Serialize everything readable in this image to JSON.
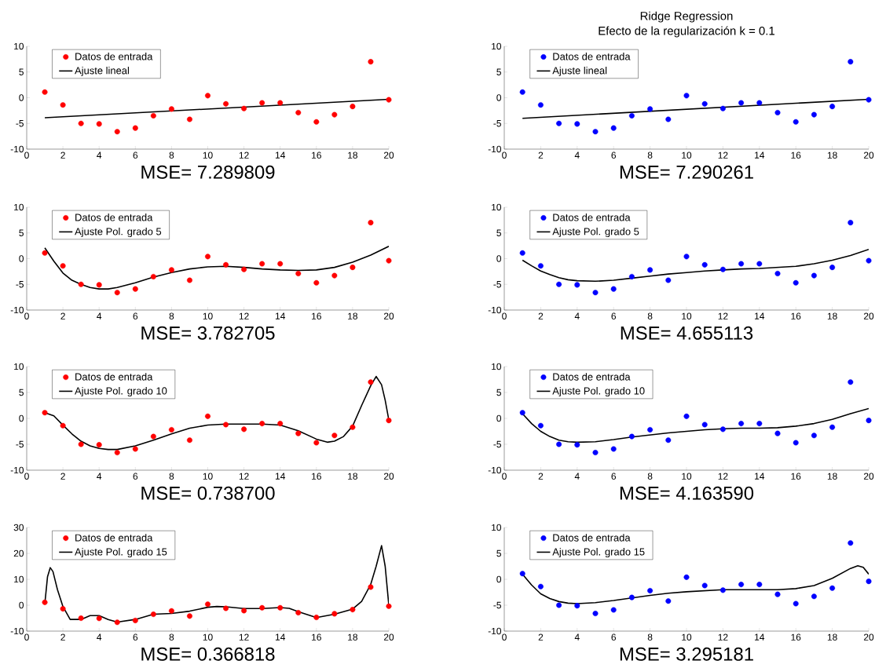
{
  "chart_data": [
    {
      "type": "scatter",
      "xlabel": "MSE= 7.289809",
      "xlim": [
        0,
        20
      ],
      "ylim": [
        -10,
        10
      ],
      "xticks": [
        0,
        2,
        4,
        6,
        8,
        10,
        12,
        14,
        16,
        18,
        20
      ],
      "yticks": [
        -10,
        -5,
        0,
        5,
        10
      ],
      "legend": "top left",
      "series": [
        {
          "name": "Datos de entrada",
          "marker": "circle",
          "color": "#ff0000",
          "x": [
            1,
            2,
            3,
            4,
            5,
            6,
            7,
            8,
            9,
            10,
            11,
            12,
            13,
            14,
            15,
            16,
            17,
            18,
            19,
            20
          ],
          "values": [
            1.1,
            -1.4,
            -5.0,
            -5.1,
            -6.6,
            -5.9,
            -3.5,
            -2.2,
            -4.2,
            0.4,
            -1.2,
            -2.1,
            -1.0,
            -1.0,
            -2.9,
            -4.7,
            -3.3,
            -1.7,
            7.0,
            -0.4
          ]
        },
        {
          "name": "Ajuste lineal",
          "type": "line",
          "marker": "none",
          "color": "#000000",
          "x": [
            1,
            20
          ],
          "values": [
            -3.9,
            -0.3
          ]
        }
      ]
    },
    {
      "type": "scatter",
      "title": "Ridge Regression",
      "subtitle": "Efecto de la regularización k = 0.1",
      "xlabel": "MSE= 7.290261",
      "xlim": [
        0,
        20
      ],
      "ylim": [
        -10,
        10
      ],
      "xticks": [
        0,
        2,
        4,
        6,
        8,
        10,
        12,
        14,
        16,
        18,
        20
      ],
      "yticks": [
        -10,
        -5,
        0,
        5,
        10
      ],
      "legend": "top left",
      "series": [
        {
          "name": "Datos de entrada",
          "type": "scatter",
          "marker": "circle",
          "color": "#0000ff",
          "x": [
            1,
            2,
            3,
            4,
            5,
            6,
            7,
            8,
            9,
            10,
            11,
            12,
            13,
            14,
            15,
            16,
            17,
            18,
            19,
            20
          ],
          "values": [
            1.1,
            -1.4,
            -5.0,
            -5.1,
            -6.6,
            -5.9,
            -3.5,
            -2.2,
            -4.2,
            0.4,
            -1.2,
            -2.1,
            -1.0,
            -1.0,
            -2.9,
            -4.7,
            -3.3,
            -1.7,
            7.0,
            -0.4
          ]
        },
        {
          "name": "Ajuste lineal",
          "type": "line",
          "marker": "none",
          "color": "#000000",
          "x": [
            1,
            20
          ],
          "values": [
            -4.0,
            -0.3
          ]
        }
      ]
    },
    {
      "type": "scatter",
      "xlabel": "MSE= 3.782705",
      "xlim": [
        0,
        20
      ],
      "ylim": [
        -10,
        10
      ],
      "xticks": [
        0,
        2,
        4,
        6,
        8,
        10,
        12,
        14,
        16,
        18,
        20
      ],
      "yticks": [
        -10,
        -5,
        0,
        5,
        10
      ],
      "legend": "top left",
      "series": [
        {
          "name": "Datos de entrada",
          "type": "scatter",
          "marker": "circle",
          "color": "#ff0000",
          "x": [
            1,
            2,
            3,
            4,
            5,
            6,
            7,
            8,
            9,
            10,
            11,
            12,
            13,
            14,
            15,
            16,
            17,
            18,
            19,
            20
          ],
          "values": [
            1.1,
            -1.4,
            -5.0,
            -5.1,
            -6.6,
            -5.9,
            -3.5,
            -2.2,
            -4.2,
            0.4,
            -1.2,
            -2.1,
            -1.0,
            -1.0,
            -2.9,
            -4.7,
            -3.3,
            -1.7,
            7.0,
            -0.4
          ]
        },
        {
          "name": "Ajuste Pol. grado 5",
          "type": "line",
          "marker": "none",
          "color": "#000000",
          "x": [
            1,
            1.5,
            2,
            2.5,
            3,
            3.5,
            4,
            4.5,
            5,
            6,
            7,
            8,
            9,
            10,
            11,
            12,
            13,
            14,
            15,
            16,
            17,
            18,
            19,
            20
          ],
          "values": [
            2.1,
            -0.5,
            -2.8,
            -4.2,
            -5.0,
            -5.6,
            -5.9,
            -5.9,
            -5.6,
            -4.7,
            -3.6,
            -2.7,
            -2.0,
            -1.6,
            -1.5,
            -1.7,
            -2.0,
            -2.2,
            -2.3,
            -2.2,
            -1.7,
            -0.7,
            0.7,
            2.4
          ]
        }
      ]
    },
    {
      "type": "scatter",
      "xlabel": "MSE= 4.655113",
      "xlim": [
        0,
        20
      ],
      "ylim": [
        -10,
        10
      ],
      "xticks": [
        0,
        2,
        4,
        6,
        8,
        10,
        12,
        14,
        16,
        18,
        20
      ],
      "yticks": [
        -10,
        -5,
        0,
        5,
        10
      ],
      "legend": "top left",
      "series": [
        {
          "name": "Datos de entrada",
          "type": "scatter",
          "marker": "circle",
          "color": "#0000ff",
          "x": [
            1,
            2,
            3,
            4,
            5,
            6,
            7,
            8,
            9,
            10,
            11,
            12,
            13,
            14,
            15,
            16,
            17,
            18,
            19,
            20
          ],
          "values": [
            1.1,
            -1.4,
            -5.0,
            -5.1,
            -6.6,
            -5.9,
            -3.5,
            -2.2,
            -4.2,
            0.4,
            -1.2,
            -2.1,
            -1.0,
            -1.0,
            -2.9,
            -4.7,
            -3.3,
            -1.7,
            7.0,
            -0.4
          ]
        },
        {
          "name": "Ajuste Pol. grado 5",
          "type": "line",
          "marker": "none",
          "color": "#000000",
          "x": [
            1,
            1.5,
            2,
            2.5,
            3,
            3.5,
            4,
            5,
            6,
            7,
            8,
            9,
            10,
            11,
            12,
            13,
            14,
            15,
            16,
            17,
            18,
            19,
            20
          ],
          "values": [
            -0.3,
            -1.4,
            -2.4,
            -3.1,
            -3.7,
            -4.1,
            -4.3,
            -4.4,
            -4.2,
            -3.8,
            -3.4,
            -3.0,
            -2.7,
            -2.4,
            -2.2,
            -2.0,
            -1.9,
            -1.7,
            -1.5,
            -1.0,
            -0.3,
            0.6,
            1.8
          ]
        }
      ]
    },
    {
      "type": "scatter",
      "xlabel": "MSE= 0.738700",
      "xlim": [
        0,
        20
      ],
      "ylim": [
        -10,
        10
      ],
      "xticks": [
        0,
        2,
        4,
        6,
        8,
        10,
        12,
        14,
        16,
        18,
        20
      ],
      "yticks": [
        -10,
        -5,
        0,
        5,
        10
      ],
      "legend": "top left",
      "series": [
        {
          "name": "Datos de entrada",
          "type": "scatter",
          "marker": "circle",
          "color": "#ff0000",
          "x": [
            1,
            2,
            3,
            4,
            5,
            6,
            7,
            8,
            9,
            10,
            11,
            12,
            13,
            14,
            15,
            16,
            17,
            18,
            19,
            20
          ],
          "values": [
            1.1,
            -1.4,
            -5.0,
            -5.1,
            -6.6,
            -5.9,
            -3.5,
            -2.2,
            -4.2,
            0.4,
            -1.2,
            -2.1,
            -1.0,
            -1.0,
            -2.9,
            -4.7,
            -3.3,
            -1.7,
            7.0,
            -0.4
          ]
        },
        {
          "name": "Ajuste Pol. grado 10",
          "type": "line",
          "marker": "none",
          "color": "#000000",
          "x": [
            1,
            1.5,
            2,
            2.5,
            3,
            3.5,
            4,
            4.5,
            5,
            6,
            7,
            8,
            9,
            10,
            11,
            12,
            13,
            14,
            15,
            15.5,
            16,
            16.6,
            17,
            17.5,
            18,
            18.5,
            19,
            19.3,
            19.6,
            19.8,
            20
          ],
          "values": [
            1.1,
            0.5,
            -1.3,
            -3.0,
            -4.4,
            -5.3,
            -5.8,
            -6.0,
            -6.0,
            -5.3,
            -4.2,
            -3.0,
            -1.9,
            -1.3,
            -1.1,
            -1.1,
            -1.1,
            -1.3,
            -2.4,
            -3.2,
            -4.0,
            -4.6,
            -4.4,
            -3.5,
            -1.5,
            2.5,
            6.3,
            8.1,
            6.5,
            3.5,
            -0.3
          ]
        }
      ]
    },
    {
      "type": "scatter",
      "xlabel": "MSE= 4.163590",
      "xlim": [
        0,
        20
      ],
      "ylim": [
        -10,
        10
      ],
      "xticks": [
        0,
        2,
        4,
        6,
        8,
        10,
        12,
        14,
        16,
        18,
        20
      ],
      "yticks": [
        -10,
        -5,
        0,
        5,
        10
      ],
      "legend": "top left",
      "series": [
        {
          "name": "Datos de entrada",
          "type": "scatter",
          "marker": "circle",
          "color": "#0000ff",
          "x": [
            1,
            2,
            3,
            4,
            5,
            6,
            7,
            8,
            9,
            10,
            11,
            12,
            13,
            14,
            15,
            16,
            17,
            18,
            19,
            20
          ],
          "values": [
            1.1,
            -1.4,
            -5.0,
            -5.1,
            -6.6,
            -5.9,
            -3.5,
            -2.2,
            -4.2,
            0.4,
            -1.2,
            -2.1,
            -1.0,
            -1.0,
            -2.9,
            -4.7,
            -3.3,
            -1.7,
            7.0,
            -0.4
          ]
        },
        {
          "name": "Ajuste Pol. grado 10",
          "type": "line",
          "marker": "none",
          "color": "#000000",
          "x": [
            1,
            1.5,
            2,
            2.5,
            3,
            3.5,
            4,
            5,
            6,
            7,
            8,
            9,
            10,
            11,
            12,
            13,
            14,
            15,
            16,
            17,
            18,
            19,
            20
          ],
          "values": [
            0.9,
            -1.0,
            -2.5,
            -3.5,
            -4.2,
            -4.5,
            -4.6,
            -4.5,
            -4.1,
            -3.6,
            -3.2,
            -2.8,
            -2.5,
            -2.2,
            -2.0,
            -1.9,
            -1.9,
            -1.8,
            -1.5,
            -1.0,
            -0.2,
            0.9,
            1.9
          ]
        }
      ]
    },
    {
      "type": "scatter",
      "xlabel": "MSE= 0.366818",
      "xlim": [
        0,
        20
      ],
      "ylim": [
        -10,
        30
      ],
      "xticks": [
        0,
        2,
        4,
        6,
        8,
        10,
        12,
        14,
        16,
        18,
        20
      ],
      "yticks": [
        -10,
        0,
        10,
        20,
        30
      ],
      "legend": "top left",
      "series": [
        {
          "name": "Datos de entrada",
          "type": "scatter",
          "marker": "circle",
          "color": "#ff0000",
          "x": [
            1,
            2,
            3,
            4,
            5,
            6,
            7,
            8,
            9,
            10,
            11,
            12,
            13,
            14,
            15,
            16,
            17,
            18,
            19,
            20
          ],
          "values": [
            1.1,
            -1.4,
            -5.0,
            -5.1,
            -6.6,
            -5.9,
            -3.5,
            -2.2,
            -4.2,
            0.4,
            -1.2,
            -2.1,
            -1.0,
            -1.0,
            -2.9,
            -4.7,
            -3.3,
            -1.7,
            7.0,
            -0.4
          ]
        },
        {
          "name": "Ajuste Pol. grado 15",
          "type": "line",
          "marker": "none",
          "color": "#000000",
          "x": [
            1,
            1.15,
            1.3,
            1.45,
            1.7,
            2,
            2.4,
            3,
            3.5,
            4,
            4.5,
            5,
            6,
            7,
            8,
            9,
            10,
            10.5,
            11,
            12,
            13,
            14,
            14.5,
            15,
            16,
            17,
            18,
            18.5,
            19,
            19.3,
            19.6,
            19.8,
            20
          ],
          "values": [
            0.5,
            11,
            14.5,
            13,
            6,
            -0.5,
            -5.5,
            -5.5,
            -4,
            -4,
            -5.5,
            -6.5,
            -5.5,
            -3.5,
            -3.2,
            -2.3,
            -0.8,
            -0.5,
            -0.6,
            -1.3,
            -1.3,
            -0.9,
            -1.2,
            -2.5,
            -4.8,
            -3.5,
            -1.5,
            1.5,
            8,
            15,
            23,
            15,
            0
          ]
        }
      ]
    },
    {
      "type": "scatter",
      "xlabel": "MSE= 3.295181",
      "xlim": [
        0,
        20
      ],
      "ylim": [
        -10,
        10
      ],
      "xticks": [
        0,
        2,
        4,
        6,
        8,
        10,
        12,
        14,
        16,
        18,
        20
      ],
      "yticks": [
        -10,
        -5,
        0,
        5,
        10
      ],
      "legend": "top left",
      "series": [
        {
          "name": "Datos de entrada",
          "type": "scatter",
          "marker": "circle",
          "color": "#0000ff",
          "x": [
            1,
            2,
            3,
            4,
            5,
            6,
            7,
            8,
            9,
            10,
            11,
            12,
            13,
            14,
            15,
            16,
            17,
            18,
            19,
            20
          ],
          "values": [
            1.1,
            -1.4,
            -5.0,
            -5.1,
            -6.6,
            -5.9,
            -3.5,
            -2.2,
            -4.2,
            0.4,
            -1.2,
            -2.1,
            -1.0,
            -1.0,
            -2.9,
            -4.7,
            -3.3,
            -1.7,
            7.0,
            -0.4
          ]
        },
        {
          "name": "Ajuste Pol. grado 15",
          "type": "line",
          "marker": "none",
          "color": "#000000",
          "x": [
            1,
            1.5,
            2,
            2.5,
            3,
            3.5,
            4,
            5,
            6,
            7,
            8,
            9,
            10,
            11,
            12,
            13,
            14,
            15,
            16,
            17,
            18,
            19,
            19.4,
            19.7,
            20
          ],
          "values": [
            1.0,
            -1.1,
            -2.8,
            -3.7,
            -4.3,
            -4.6,
            -4.7,
            -4.5,
            -4.1,
            -3.6,
            -3.1,
            -2.7,
            -2.4,
            -2.2,
            -2.0,
            -2.0,
            -2.0,
            -2.0,
            -1.8,
            -1.2,
            0.2,
            2.1,
            2.6,
            2.3,
            1.0
          ]
        }
      ]
    }
  ]
}
